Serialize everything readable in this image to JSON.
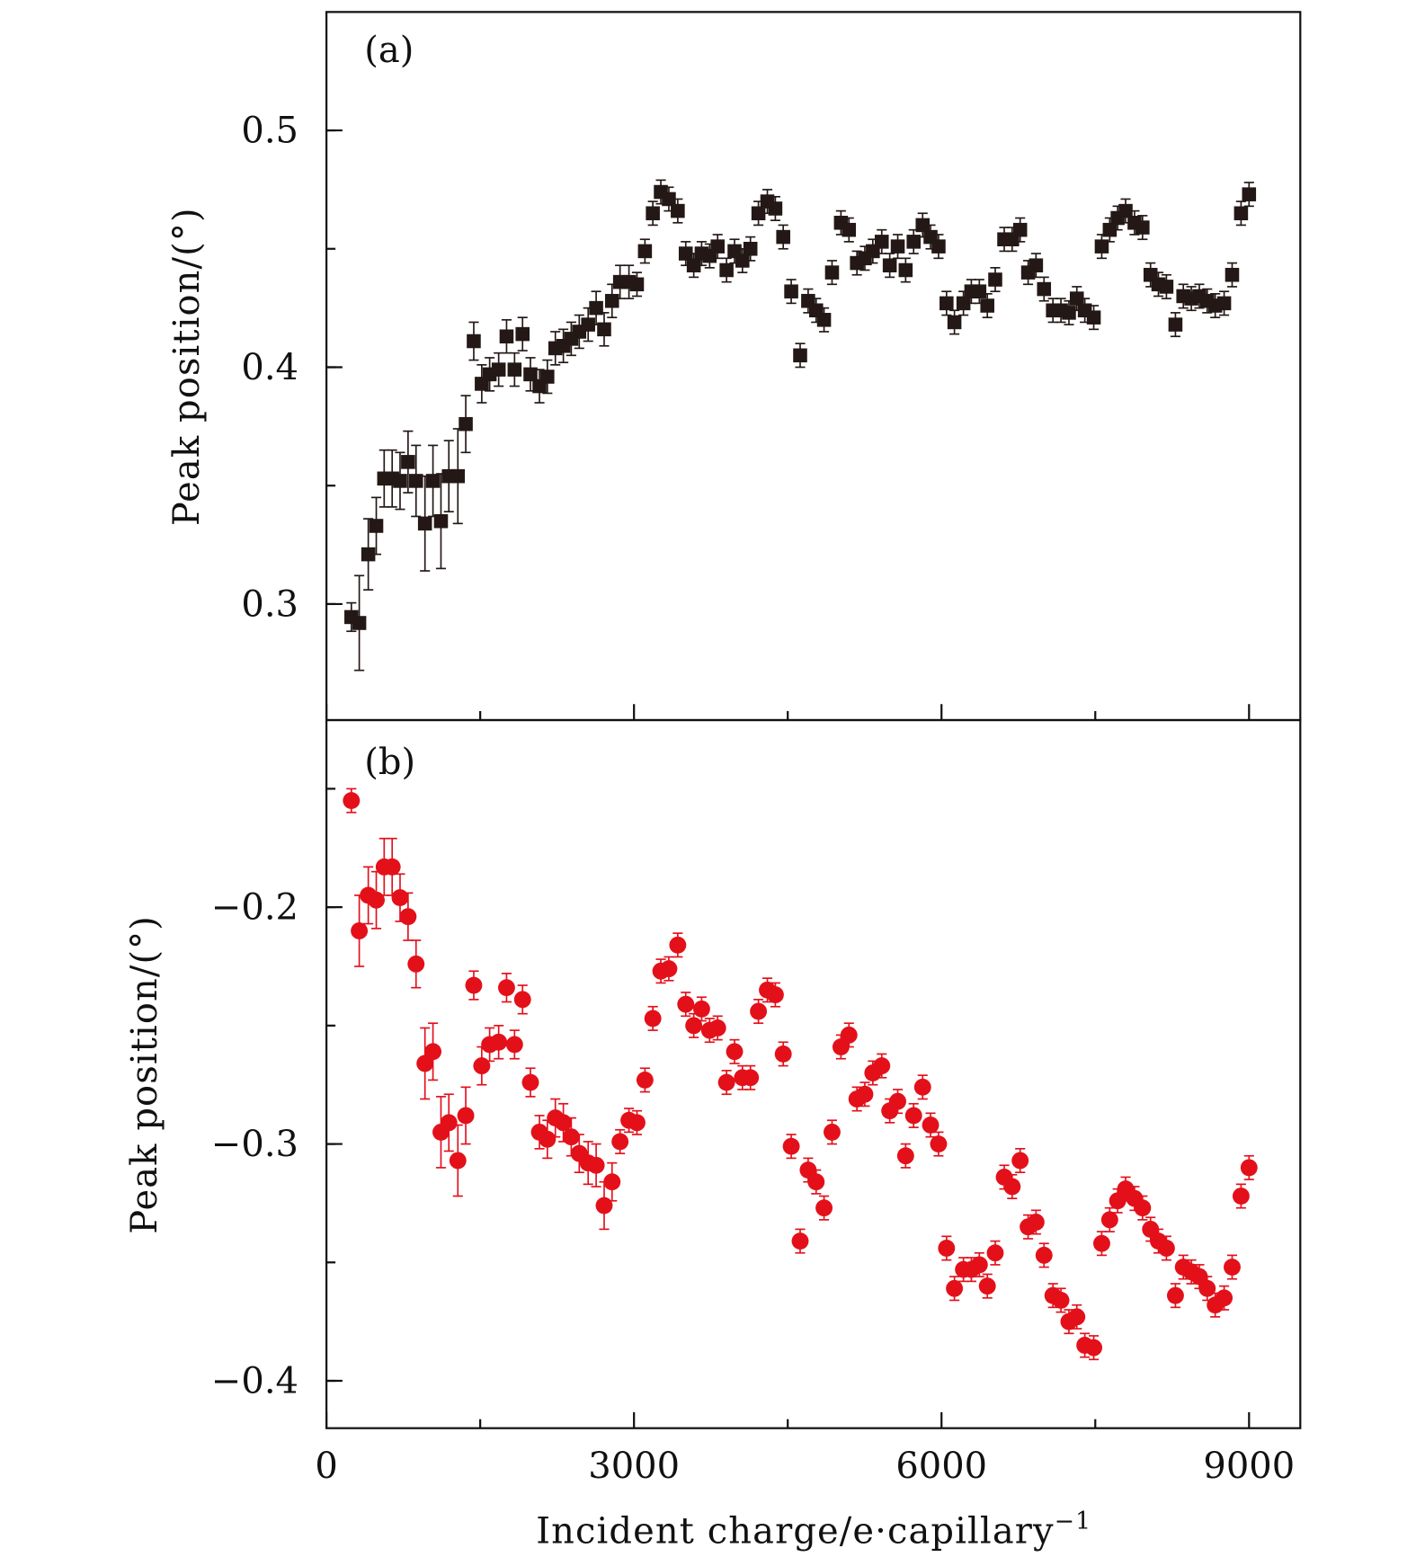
{
  "chart_data": {
    "type": "scatter",
    "xlabel": "Incident charge/e·capillary",
    "xlabel_sup": "−1",
    "xlim": [
      0,
      9500
    ],
    "x_ticks": [
      0,
      3000,
      6000,
      9000
    ],
    "x_tick_labels": [
      "0",
      "3000",
      "6000",
      "9000"
    ],
    "x": [
      243,
      320,
      408,
      486,
      563,
      641,
      718,
      796,
      874,
      961,
      1039,
      1117,
      1194,
      1282,
      1359,
      1437,
      1515,
      1592,
      1680,
      1757,
      1835,
      1913,
      1990,
      2078,
      2155,
      2233,
      2311,
      2388,
      2466,
      2553,
      2631,
      2709,
      2786,
      2864,
      2951,
      3029,
      3107,
      3184,
      3262,
      3340,
      3427,
      3505,
      3583,
      3660,
      3738,
      3816,
      3903,
      3981,
      4058,
      4136,
      4214,
      4301,
      4379,
      4456,
      4534,
      4621,
      4699,
      4777,
      4854,
      4932,
      5019,
      5097,
      5175,
      5252,
      5330,
      5417,
      5495,
      5573,
      5650,
      5728,
      5816,
      5893,
      5971,
      6049,
      6126,
      6214,
      6291,
      6369,
      6447,
      6524,
      6612,
      6689,
      6767,
      6845,
      6922,
      7000,
      7087,
      7165,
      7243,
      7320,
      7398,
      7485,
      7563,
      7641,
      7718,
      7796,
      7883,
      7961,
      8039,
      8116,
      8194,
      8282,
      8359,
      8437,
      8515,
      8592,
      8670,
      8757,
      8835,
      8922,
      9000
    ],
    "panels": [
      {
        "label": "(a)",
        "ylabel": "Peak position/(°)",
        "ylim": [
          0.251,
          0.55
        ],
        "y_ticks": [
          0.3,
          0.4,
          0.5
        ],
        "y_tick_labels": [
          "0.3",
          "0.4",
          "0.5"
        ],
        "marker": "square",
        "color": "#231816",
        "yerr_first": [
          0.006,
          0.02,
          0.015,
          0.012,
          0.012,
          0.012,
          0.012,
          0.013,
          0.015,
          0.02,
          0.015,
          0.02,
          0.015,
          0.02,
          0.012,
          0.008,
          0.008,
          0.007,
          0.007,
          0.007,
          0.007,
          0.007,
          0.007,
          0.007,
          0.007,
          0.007,
          0.007,
          0.007,
          0.007,
          0.007,
          0.007,
          0.007,
          0.007,
          0.007,
          0.007
        ],
        "yerr_default": 0.005,
        "values": [
          0.2945,
          0.292,
          0.321,
          0.333,
          0.353,
          0.353,
          0.352,
          0.36,
          0.352,
          0.334,
          0.352,
          0.335,
          0.354,
          0.354,
          0.376,
          0.411,
          0.393,
          0.397,
          0.399,
          0.413,
          0.399,
          0.414,
          0.397,
          0.392,
          0.396,
          0.408,
          0.409,
          0.412,
          0.415,
          0.418,
          0.425,
          0.416,
          0.428,
          0.436,
          0.436,
          0.435,
          0.449,
          0.465,
          0.474,
          0.471,
          0.466,
          0.448,
          0.443,
          0.448,
          0.447,
          0.451,
          0.441,
          0.449,
          0.445,
          0.45,
          0.465,
          0.47,
          0.467,
          0.455,
          0.432,
          0.405,
          0.428,
          0.424,
          0.42,
          0.44,
          0.461,
          0.458,
          0.444,
          0.446,
          0.449,
          0.453,
          0.443,
          0.451,
          0.441,
          0.453,
          0.46,
          0.455,
          0.451,
          0.427,
          0.419,
          0.427,
          0.432,
          0.432,
          0.426,
          0.437,
          0.454,
          0.454,
          0.458,
          0.44,
          0.443,
          0.433,
          0.424,
          0.424,
          0.423,
          0.429,
          0.424,
          0.421,
          0.451,
          0.458,
          0.463,
          0.466,
          0.461,
          0.459,
          0.439,
          0.435,
          0.434,
          0.418,
          0.43,
          0.429,
          0.43,
          0.428,
          0.426,
          0.427,
          0.439,
          0.465,
          0.473
        ]
      },
      {
        "label": "(b)",
        "ylabel": "Peak position/(°)",
        "ylim": [
          -0.42,
          -0.121
        ],
        "y_ticks": [
          -0.2,
          -0.3,
          -0.4
        ],
        "y_tick_labels": [
          "−0.2",
          "−0.3",
          "−0.4"
        ],
        "marker": "circle",
        "color": "#e3101a",
        "yerr_first": [
          0.005,
          0.015,
          0.012,
          0.012,
          0.012,
          0.012,
          0.01,
          0.01,
          0.01,
          0.015,
          0.012,
          0.015,
          0.012,
          0.015,
          0.012,
          0.006,
          0.008,
          0.007,
          0.007,
          0.006,
          0.006,
          0.006,
          0.006,
          0.007,
          0.008,
          0.008,
          0.008,
          0.008,
          0.008,
          0.009,
          0.009,
          0.01,
          0.008
        ],
        "yerr_default": 0.005,
        "values": [
          -0.155,
          -0.21,
          -0.195,
          -0.197,
          -0.183,
          -0.183,
          -0.196,
          -0.204,
          -0.224,
          -0.266,
          -0.261,
          -0.295,
          -0.291,
          -0.307,
          -0.288,
          -0.233,
          -0.267,
          -0.258,
          -0.257,
          -0.234,
          -0.258,
          -0.239,
          -0.274,
          -0.295,
          -0.298,
          -0.289,
          -0.291,
          -0.297,
          -0.304,
          -0.308,
          -0.309,
          -0.326,
          -0.316,
          -0.299,
          -0.29,
          -0.291,
          -0.273,
          -0.247,
          -0.227,
          -0.226,
          -0.216,
          -0.241,
          -0.25,
          -0.243,
          -0.252,
          -0.251,
          -0.274,
          -0.261,
          -0.272,
          -0.272,
          -0.244,
          -0.235,
          -0.237,
          -0.262,
          -0.301,
          -0.341,
          -0.311,
          -0.316,
          -0.327,
          -0.295,
          -0.259,
          -0.254,
          -0.281,
          -0.279,
          -0.27,
          -0.267,
          -0.286,
          -0.282,
          -0.305,
          -0.288,
          -0.276,
          -0.292,
          -0.3,
          -0.344,
          -0.361,
          -0.353,
          -0.353,
          -0.351,
          -0.36,
          -0.346,
          -0.314,
          -0.318,
          -0.307,
          -0.335,
          -0.333,
          -0.347,
          -0.364,
          -0.366,
          -0.375,
          -0.373,
          -0.385,
          -0.386,
          -0.342,
          -0.332,
          -0.324,
          -0.319,
          -0.323,
          -0.327,
          -0.336,
          -0.341,
          -0.344,
          -0.364,
          -0.352,
          -0.354,
          -0.356,
          -0.361,
          -0.368,
          -0.365,
          -0.352,
          -0.322,
          -0.31
        ]
      }
    ]
  }
}
